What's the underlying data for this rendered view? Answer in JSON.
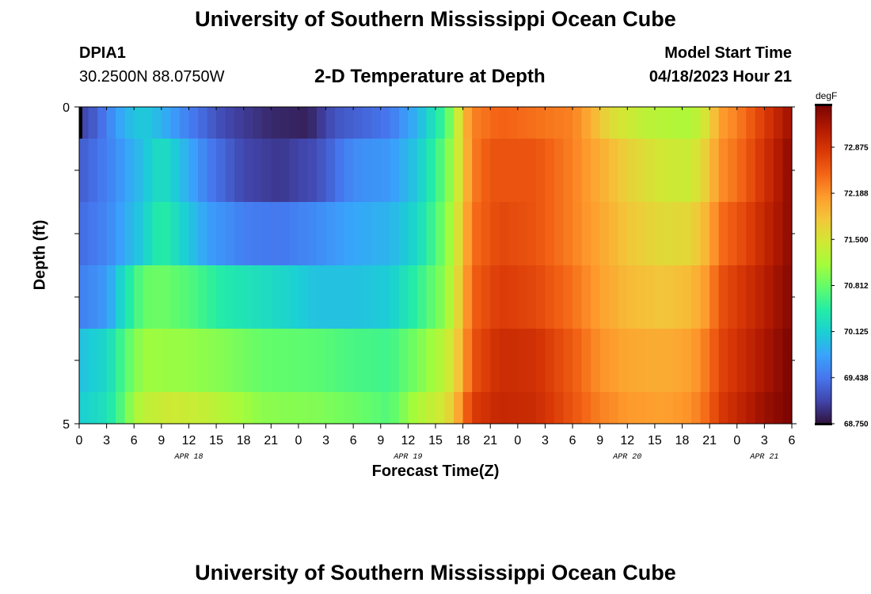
{
  "header": {
    "title": "University of Southern Mississippi Ocean Cube",
    "station": "DPIA1",
    "coords": "30.2500N  88.0750W",
    "subtitle": "2-D Temperature at Depth",
    "model_start_label": "Model Start Time",
    "model_start_value": "04/18/2023 Hour 21"
  },
  "footer": {
    "title": "University of Southern Mississippi Ocean Cube"
  },
  "chart_data": {
    "type": "heatmap",
    "title": "2-D Temperature at Depth",
    "xlabel": "Forecast Time(Z)",
    "ylabel": "Depth (ft)",
    "units": "degF",
    "x_tick_labels": [
      "0",
      "3",
      "6",
      "9",
      "12",
      "15",
      "18",
      "21",
      "0",
      "3",
      "6",
      "9",
      "12",
      "15",
      "18",
      "21",
      "0",
      "3",
      "6",
      "9",
      "12",
      "15",
      "18",
      "21",
      "0",
      "3",
      "6"
    ],
    "x_date_labels": [
      {
        "label": "APR 18",
        "hour": 12
      },
      {
        "label": "APR 19",
        "hour": 36
      },
      {
        "label": "APR 20",
        "hour": 60
      },
      {
        "label": "APR 21",
        "hour": 75
      }
    ],
    "x_range_hours": [
      0,
      78
    ],
    "y_tick_labels": [
      "0",
      "5"
    ],
    "y_range": [
      0,
      5
    ],
    "colorbar": {
      "min": 68.75,
      "max": 73.5,
      "ticks": [
        "72.875",
        "72.188",
        "71.500",
        "70.812",
        "70.125",
        "69.438",
        "68.750"
      ]
    },
    "rows": [
      {
        "depth": "0-0.5",
        "keys": [
          [
            0,
            69.05
          ],
          [
            2,
            69.3
          ],
          [
            5,
            69.9
          ],
          [
            7,
            70.1
          ],
          [
            9,
            69.9
          ],
          [
            12,
            69.5
          ],
          [
            16,
            69.1
          ],
          [
            21,
            68.9
          ],
          [
            25,
            68.85
          ],
          [
            28,
            69.2
          ],
          [
            34,
            69.45
          ],
          [
            37,
            69.9
          ],
          [
            40,
            70.6
          ],
          [
            41,
            71.1
          ],
          [
            42,
            71.8
          ],
          [
            43,
            72.3
          ],
          [
            46,
            72.5
          ],
          [
            50,
            72.4
          ],
          [
            54,
            72.3
          ],
          [
            56,
            72.0
          ],
          [
            58,
            71.6
          ],
          [
            62,
            71.3
          ],
          [
            67,
            71.2
          ],
          [
            69,
            71.6
          ],
          [
            70,
            72.1
          ],
          [
            72,
            72.3
          ],
          [
            75,
            72.8
          ],
          [
            78,
            73.3
          ]
        ]
      },
      {
        "depth": "0.5-1.5",
        "keys": [
          [
            0,
            69.25
          ],
          [
            3,
            69.5
          ],
          [
            7,
            70.0
          ],
          [
            9,
            70.3
          ],
          [
            11,
            70.0
          ],
          [
            14,
            69.5
          ],
          [
            18,
            69.1
          ],
          [
            22,
            69.0
          ],
          [
            26,
            69.15
          ],
          [
            30,
            69.6
          ],
          [
            34,
            69.7
          ],
          [
            37,
            70.05
          ],
          [
            40,
            70.8
          ],
          [
            41,
            71.2
          ],
          [
            42,
            71.7
          ],
          [
            43,
            72.3
          ],
          [
            45,
            72.6
          ],
          [
            50,
            72.6
          ],
          [
            54,
            72.3
          ],
          [
            57,
            72.0
          ],
          [
            60,
            71.7
          ],
          [
            64,
            71.45
          ],
          [
            67,
            71.4
          ],
          [
            69,
            71.8
          ],
          [
            70,
            72.2
          ],
          [
            72,
            72.4
          ],
          [
            75,
            72.9
          ],
          [
            78,
            73.4
          ]
        ]
      },
      {
        "depth": "1.5-2.5",
        "keys": [
          [
            0,
            69.35
          ],
          [
            3,
            69.55
          ],
          [
            7,
            70.1
          ],
          [
            9,
            70.5
          ],
          [
            11,
            70.2
          ],
          [
            14,
            69.75
          ],
          [
            18,
            69.5
          ],
          [
            22,
            69.45
          ],
          [
            26,
            69.6
          ],
          [
            30,
            69.8
          ],
          [
            34,
            69.9
          ],
          [
            37,
            70.2
          ],
          [
            40,
            70.9
          ],
          [
            41,
            71.3
          ],
          [
            42,
            71.8
          ],
          [
            43,
            72.4
          ],
          [
            46,
            72.7
          ],
          [
            50,
            72.6
          ],
          [
            54,
            72.3
          ],
          [
            57,
            72.05
          ],
          [
            60,
            71.8
          ],
          [
            64,
            71.6
          ],
          [
            67,
            71.65
          ],
          [
            69,
            72.0
          ],
          [
            70,
            72.4
          ],
          [
            72,
            72.6
          ],
          [
            75,
            73.0
          ],
          [
            78,
            73.4
          ]
        ]
      },
      {
        "depth": "2.5-3.5",
        "keys": [
          [
            0,
            69.5
          ],
          [
            3,
            69.7
          ],
          [
            5,
            70.3
          ],
          [
            7,
            70.8
          ],
          [
            9,
            70.85
          ],
          [
            12,
            70.7
          ],
          [
            16,
            70.4
          ],
          [
            22,
            70.2
          ],
          [
            26,
            70.0
          ],
          [
            30,
            70.0
          ],
          [
            34,
            70.1
          ],
          [
            37,
            70.5
          ],
          [
            40,
            71.0
          ],
          [
            41,
            71.4
          ],
          [
            42,
            71.9
          ],
          [
            43,
            72.5
          ],
          [
            46,
            72.8
          ],
          [
            50,
            72.7
          ],
          [
            54,
            72.4
          ],
          [
            57,
            72.1
          ],
          [
            60,
            71.9
          ],
          [
            64,
            71.8
          ],
          [
            67,
            71.9
          ],
          [
            69,
            72.2
          ],
          [
            70,
            72.6
          ],
          [
            72,
            72.8
          ],
          [
            75,
            73.1
          ],
          [
            78,
            73.45
          ]
        ]
      },
      {
        "depth": "3.5-4.5",
        "keys": [
          [
            0,
            70.0
          ],
          [
            3,
            70.2
          ],
          [
            5,
            70.7
          ],
          [
            7,
            71.1
          ],
          [
            12,
            71.05
          ],
          [
            16,
            70.95
          ],
          [
            20,
            70.8
          ],
          [
            26,
            70.75
          ],
          [
            30,
            70.65
          ],
          [
            34,
            70.6
          ],
          [
            37,
            70.9
          ],
          [
            40,
            71.3
          ],
          [
            41,
            71.6
          ],
          [
            42,
            72.0
          ],
          [
            43,
            72.6
          ],
          [
            46,
            72.95
          ],
          [
            50,
            72.9
          ],
          [
            54,
            72.55
          ],
          [
            57,
            72.2
          ],
          [
            60,
            72.05
          ],
          [
            64,
            72.0
          ],
          [
            67,
            72.1
          ],
          [
            69,
            72.4
          ],
          [
            70,
            72.7
          ],
          [
            72,
            72.9
          ],
          [
            75,
            73.2
          ],
          [
            78,
            73.5
          ]
        ]
      },
      {
        "depth": "4.5-5",
        "keys": [
          [
            0,
            70.1
          ],
          [
            3,
            70.3
          ],
          [
            5,
            70.8
          ],
          [
            6,
            71.15
          ],
          [
            7,
            71.3
          ],
          [
            10,
            71.45
          ],
          [
            14,
            71.35
          ],
          [
            20,
            71.0
          ],
          [
            26,
            70.95
          ],
          [
            30,
            70.85
          ],
          [
            34,
            70.7
          ],
          [
            37,
            71.2
          ],
          [
            40,
            71.5
          ],
          [
            41,
            71.8
          ],
          [
            42,
            72.3
          ],
          [
            43,
            72.8
          ],
          [
            46,
            73.0
          ],
          [
            50,
            72.95
          ],
          [
            54,
            72.6
          ],
          [
            57,
            72.3
          ],
          [
            60,
            72.15
          ],
          [
            64,
            72.1
          ],
          [
            67,
            72.2
          ],
          [
            69,
            72.5
          ],
          [
            70,
            72.8
          ],
          [
            72,
            73.0
          ],
          [
            75,
            73.3
          ],
          [
            78,
            73.5
          ]
        ]
      }
    ],
    "palette": [
      "#30123b",
      "#4145ab",
      "#4675ed",
      "#39a2fc",
      "#1bcfd4",
      "#24eca6",
      "#61fc6c",
      "#a4fc3b",
      "#d1e834",
      "#f3c63a",
      "#fe9b2d",
      "#f36315",
      "#d93806",
      "#b11901",
      "#7a0402"
    ]
  }
}
